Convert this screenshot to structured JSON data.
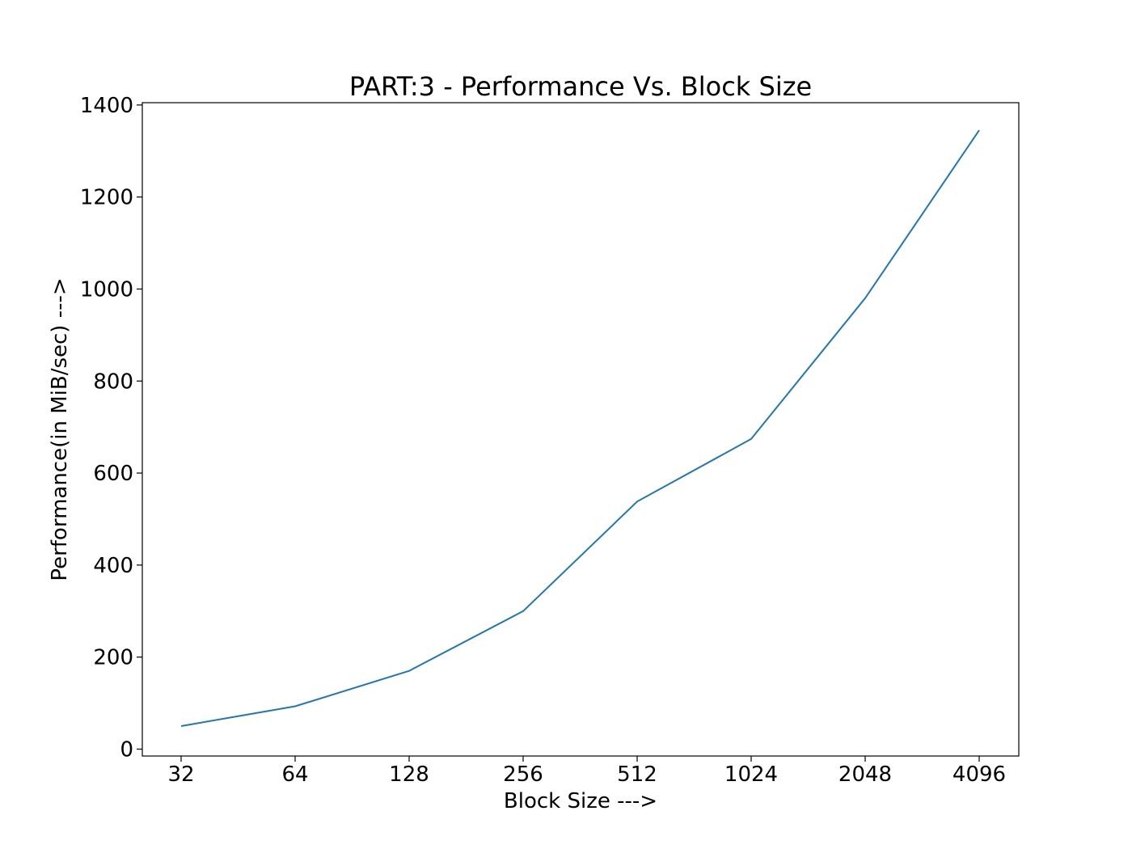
{
  "chart_data": {
    "type": "line",
    "title": "PART:3 - Performance Vs. Block Size",
    "xlabel": "Block Size --->",
    "ylabel": "Performance(in MiB/sec) --->",
    "categories": [
      "32",
      "64",
      "128",
      "256",
      "512",
      "1024",
      "2048",
      "4096"
    ],
    "series": [
      {
        "values": [
          50,
          93,
          170,
          300,
          538,
          674,
          980,
          1345
        ]
      }
    ],
    "ylim": [
      -15,
      1405
    ],
    "yticks": [
      0,
      200,
      400,
      600,
      800,
      1000,
      1200,
      1400
    ],
    "grid": false,
    "line_color": "#1f77b4"
  }
}
